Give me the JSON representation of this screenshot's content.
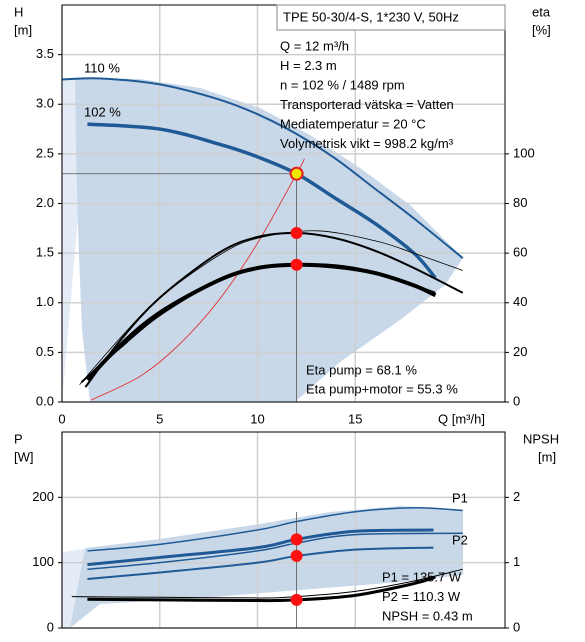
{
  "chart_data": [
    {
      "type": "line",
      "title": "TPE 50-30/4-S, 1*230 V, 50Hz",
      "ylabel": "H",
      "yunit": "[m]",
      "y2label": "eta",
      "y2unit": "[%]",
      "xlabel": "Q [m³/h]",
      "xlim": [
        0,
        22.66
      ],
      "ylim": [
        0,
        4
      ],
      "y2lim": [
        0,
        160
      ],
      "xticks": [
        0,
        5,
        10,
        15
      ],
      "yticks": [
        {
          "value": 0,
          "label": "0.0"
        },
        0.5,
        {
          "value": 1,
          "label": "1.0"
        },
        1.5,
        {
          "value": 2,
          "label": "2.0"
        },
        2.5,
        {
          "value": 3,
          "label": "3.0"
        },
        3.5
      ],
      "y2ticks": [
        0,
        20,
        40,
        60,
        80,
        100
      ],
      "grid": true,
      "series": [
        {
          "color": "#1f5a96",
          "line_width": 2,
          "x": [
            0,
            2,
            5,
            8,
            10,
            12,
            14,
            16,
            18,
            20.5
          ],
          "values": [
            3.25,
            3.26,
            3.2,
            3.05,
            2.9,
            2.7,
            2.45,
            2.15,
            1.85,
            1.45
          ]
        },
        {
          "color": "#1f5a96",
          "line_width": 3.5,
          "x": [
            1.3,
            5,
            8,
            10,
            12,
            14,
            16,
            18,
            19.1
          ],
          "values": [
            2.8,
            2.75,
            2.6,
            2.47,
            2.3,
            2.05,
            1.8,
            1.5,
            1.25
          ]
        },
        {
          "color": "#e02020",
          "line_width": 0.8,
          "x": [
            1.5,
            4,
            6,
            8,
            10,
            12,
            12.4
          ],
          "values": [
            0.02,
            0.26,
            0.58,
            1.02,
            1.6,
            2.3,
            2.45
          ]
        },
        {
          "color": "#000000",
          "line_width": 0.8,
          "axis": "y2",
          "x": [
            0.9,
            3,
            5,
            8,
            10,
            13,
            16,
            18,
            20.5
          ],
          "values": [
            7,
            26,
            42,
            59,
            66,
            69,
            65,
            60,
            53
          ]
        },
        {
          "color": "#000000",
          "line_width": 2,
          "axis": "y2",
          "x": [
            1.2,
            3,
            5,
            8,
            10,
            12,
            14,
            16,
            18,
            20.5
          ],
          "values": [
            6,
            25,
            42,
            60,
            66.5,
            68.1,
            66,
            61,
            54,
            44
          ]
        },
        {
          "color": "#000000",
          "line_width": 2,
          "axis": "y2",
          "x": [
            1,
            3,
            5,
            8,
            10,
            12.5,
            15,
            18,
            19.1
          ],
          "values": [
            8,
            22,
            35,
            49,
            54,
            55.5,
            54,
            47,
            44
          ]
        },
        {
          "color": "#000000",
          "line_width": 4,
          "axis": "y2",
          "x": [
            1.3,
            3,
            5,
            8,
            10,
            12,
            14,
            16,
            18,
            19.1
          ],
          "values": [
            9,
            23,
            36,
            49,
            54,
            55.3,
            54.5,
            52,
            47,
            43
          ]
        }
      ],
      "points": [
        {
          "x": 12,
          "y": 2.3,
          "color": "#f5e600"
        },
        {
          "x": 12,
          "y": 68.1,
          "axis": "y2",
          "color": "#ff1010"
        },
        {
          "x": 12,
          "y": 55.3,
          "axis": "y2",
          "color": "#ff1010"
        }
      ],
      "curve_labels": [
        "110 %",
        "102 %"
      ],
      "info": [
        "Q = 12 m³/h",
        "H = 2.3 m",
        "n = 102 % / 1489 rpm",
        "Transporterad vätska = Vatten",
        "Mediatemperatur = 20 °C",
        "Volymetrisk vikt = 998.2 kg/m³"
      ],
      "eta_info": [
        "Eta pump = 68.1 %",
        "Eta pump+motor = 55.3 %"
      ]
    },
    {
      "type": "line",
      "ylabel": "P",
      "yunit": "[W]",
      "y2label": "NPSH",
      "y2unit": "[m]",
      "xlim": [
        0,
        22.66
      ],
      "ylim": [
        0,
        300
      ],
      "y2lim": [
        0,
        3
      ],
      "xticks": [
        0,
        5,
        10,
        15
      ],
      "yticks": [
        0,
        100,
        200
      ],
      "y2ticks": [
        0,
        1,
        2
      ],
      "grid": true,
      "series": [
        {
          "color": "#1f5a96",
          "line_width": 1.5,
          "x": [
            1.3,
            5,
            10,
            12,
            15,
            18,
            20.5
          ],
          "values": [
            118,
            128,
            150,
            163,
            178,
            184,
            180
          ]
        },
        {
          "color": "#1f5a96",
          "line_width": 3,
          "x": [
            1.3,
            5,
            10,
            12,
            15,
            19
          ],
          "values": [
            97,
            108,
            123,
            135.7,
            148,
            150
          ]
        },
        {
          "color": "#1f5a96",
          "line_width": 1.5,
          "x": [
            1.3,
            5,
            10,
            12,
            15,
            20.5
          ],
          "values": [
            90,
            100,
            118,
            130,
            143,
            145
          ]
        },
        {
          "color": "#1f5a96",
          "line_width": 2,
          "x": [
            1.3,
            5,
            10,
            12,
            15,
            19
          ],
          "values": [
            75,
            85,
            100,
            110.3,
            120,
            123
          ]
        },
        {
          "color": "#000000",
          "line_width": 1,
          "axis": "y2",
          "x": [
            0.5,
            5,
            10,
            12,
            15,
            18,
            20.5
          ],
          "values": [
            0.48,
            0.47,
            0.46,
            0.48,
            0.56,
            0.72,
            0.9
          ]
        },
        {
          "color": "#000000",
          "line_width": 3,
          "axis": "y2",
          "x": [
            1.3,
            5,
            10,
            12,
            15,
            18,
            19.1
          ],
          "values": [
            0.44,
            0.43,
            0.42,
            0.43,
            0.5,
            0.68,
            0.78
          ]
        }
      ],
      "points": [
        {
          "x": 12,
          "y": 135.7,
          "color": "#ff1010"
        },
        {
          "x": 12,
          "y": 110.3,
          "color": "#ff1010"
        },
        {
          "x": 12,
          "y": 0.43,
          "axis": "y2",
          "color": "#ff1010"
        }
      ],
      "curve_labels": [
        "P1",
        "P2"
      ],
      "info": [
        "P1 = 135.7 W",
        "P2 = 110.3 W",
        "NPSH = 0.43 m"
      ]
    }
  ]
}
